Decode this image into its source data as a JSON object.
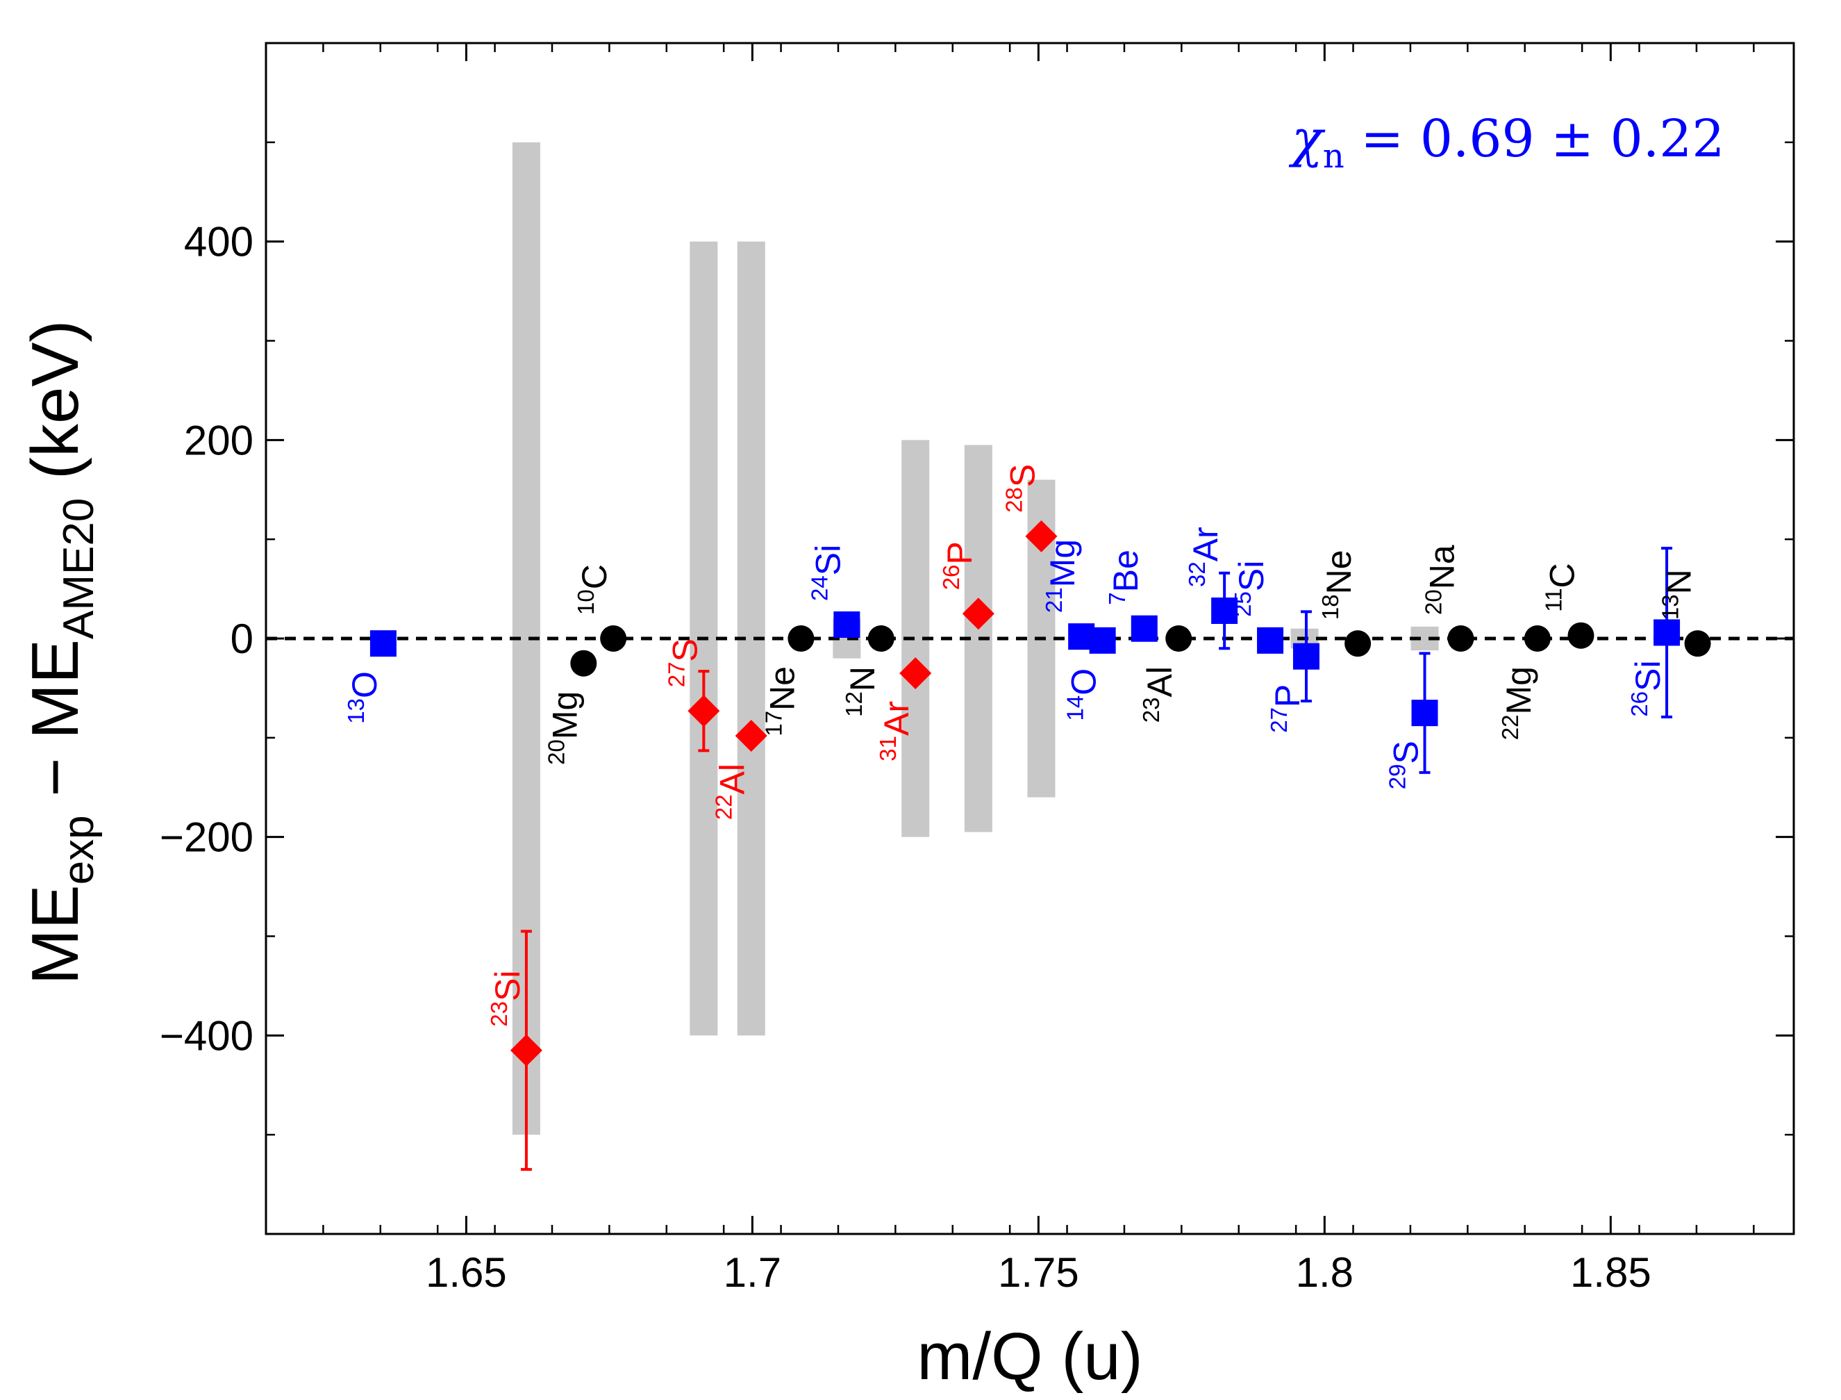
{
  "chart_data": {
    "type": "scatter",
    "title": "",
    "xlabel": "m/Q (u)",
    "ylabel": {
      "base": "ME",
      "sub1": "exp",
      "mid": " − ME",
      "sub2": "AME20",
      "unit": " (keV)"
    },
    "xlim": [
      1.615,
      1.882
    ],
    "ylim": [
      -600,
      600
    ],
    "x_ticks": [
      1.65,
      1.7,
      1.75,
      1.8,
      1.85
    ],
    "x_tick_labels": [
      "1.65",
      "1.7",
      "1.75",
      "1.8",
      "1.85"
    ],
    "y_ticks": [
      -400,
      -200,
      0,
      200,
      400
    ],
    "y_tick_labels": [
      "−400",
      "−200",
      "0",
      "200",
      "400"
    ],
    "annotation": {
      "symbol": "χ",
      "sub": "n",
      "text": " = 0.69 ± 0.22",
      "color": "#0000ff"
    },
    "colors": {
      "black": "#000000",
      "blue": "#0000ff",
      "red": "#ff0000",
      "band": "#c8c8c8"
    },
    "bands": [
      {
        "x": 1.6605,
        "half": 500
      },
      {
        "x": 1.6915,
        "half": 400
      },
      {
        "x": 1.6998,
        "half": 400
      },
      {
        "x": 1.7165,
        "half": 20
      },
      {
        "x": 1.7285,
        "half": 200
      },
      {
        "x": 1.7395,
        "half": 195
      },
      {
        "x": 1.7505,
        "half": 160
      },
      {
        "x": 1.7965,
        "half": 10
      },
      {
        "x": 1.8175,
        "half": 12
      }
    ],
    "series": [
      {
        "name": "black",
        "marker": "circle",
        "color": "#000000",
        "points": [
          {
            "x": 1.6705,
            "y": -25,
            "mass": "20",
            "el": "Mg",
            "pos": "below"
          },
          {
            "x": 1.6757,
            "y": 0,
            "mass": "10",
            "el": "C",
            "pos": "above"
          },
          {
            "x": 1.7085,
            "y": 0,
            "mass": "17",
            "el": "Ne",
            "pos": "below"
          },
          {
            "x": 1.7225,
            "y": 0,
            "mass": "12",
            "el": "N",
            "pos": "below"
          },
          {
            "x": 1.7745,
            "y": 0,
            "mass": "23",
            "el": "Al",
            "pos": "below"
          },
          {
            "x": 1.8058,
            "y": -5,
            "mass": "18",
            "el": "Ne",
            "pos": "above"
          },
          {
            "x": 1.8238,
            "y": 0,
            "mass": "20",
            "el": "Na",
            "pos": "above"
          },
          {
            "x": 1.8372,
            "y": 0,
            "mass": "22",
            "el": "Mg",
            "pos": "below"
          },
          {
            "x": 1.8448,
            "y": 3,
            "mass": "11",
            "el": "C",
            "pos": "above"
          },
          {
            "x": 1.8652,
            "y": -5,
            "mass": "13",
            "el": "N",
            "pos": "above"
          }
        ]
      },
      {
        "name": "blue",
        "marker": "square",
        "color": "#0000ff",
        "points": [
          {
            "x": 1.6355,
            "y": -5,
            "err": 5,
            "mass": "13",
            "el": "O",
            "pos": "below"
          },
          {
            "x": 1.7165,
            "y": 14,
            "err": 5,
            "mass": "24",
            "el": "Si",
            "pos": "above"
          },
          {
            "x": 1.7575,
            "y": 2,
            "err": 3,
            "mass": "21",
            "el": "Mg",
            "pos": "above"
          },
          {
            "x": 1.7612,
            "y": -2,
            "err": 3,
            "mass": "14",
            "el": "O",
            "pos": "below"
          },
          {
            "x": 1.7685,
            "y": 10,
            "err": 5,
            "mass": "7",
            "el": "Be",
            "pos": "above"
          },
          {
            "x": 1.7825,
            "y": 28,
            "err": 38,
            "mass": "32",
            "el": "Ar",
            "pos": "above"
          },
          {
            "x": 1.7905,
            "y": -2,
            "err": 5,
            "mass": "25",
            "el": "Si",
            "pos": "above"
          },
          {
            "x": 1.7968,
            "y": -18,
            "err": 45,
            "mass": "27",
            "el": "P",
            "pos": "below"
          },
          {
            "x": 1.8175,
            "y": -75,
            "err": 60,
            "mass": "29",
            "el": "S",
            "pos": "below"
          },
          {
            "x": 1.8598,
            "y": 6,
            "err": 85,
            "mass": "26",
            "el": "Si",
            "pos": "below"
          }
        ]
      },
      {
        "name": "red",
        "marker": "diamond",
        "color": "#ff0000",
        "points": [
          {
            "x": 1.6605,
            "y": -415,
            "err": 120,
            "mass": "23",
            "el": "Si",
            "pos": "above"
          },
          {
            "x": 1.6915,
            "y": -73,
            "err": 40,
            "mass": "27",
            "el": "S",
            "pos": "above"
          },
          {
            "x": 1.6998,
            "y": -98,
            "err": 8,
            "mass": "22",
            "el": "Al",
            "pos": "below"
          },
          {
            "x": 1.7285,
            "y": -35,
            "err": 8,
            "mass": "31",
            "el": "Ar",
            "pos": "below"
          },
          {
            "x": 1.7395,
            "y": 25,
            "err": 8,
            "mass": "26",
            "el": "P",
            "pos": "above"
          },
          {
            "x": 1.7505,
            "y": 103,
            "err": 8,
            "mass": "28",
            "el": "S",
            "pos": "above"
          }
        ]
      }
    ]
  }
}
